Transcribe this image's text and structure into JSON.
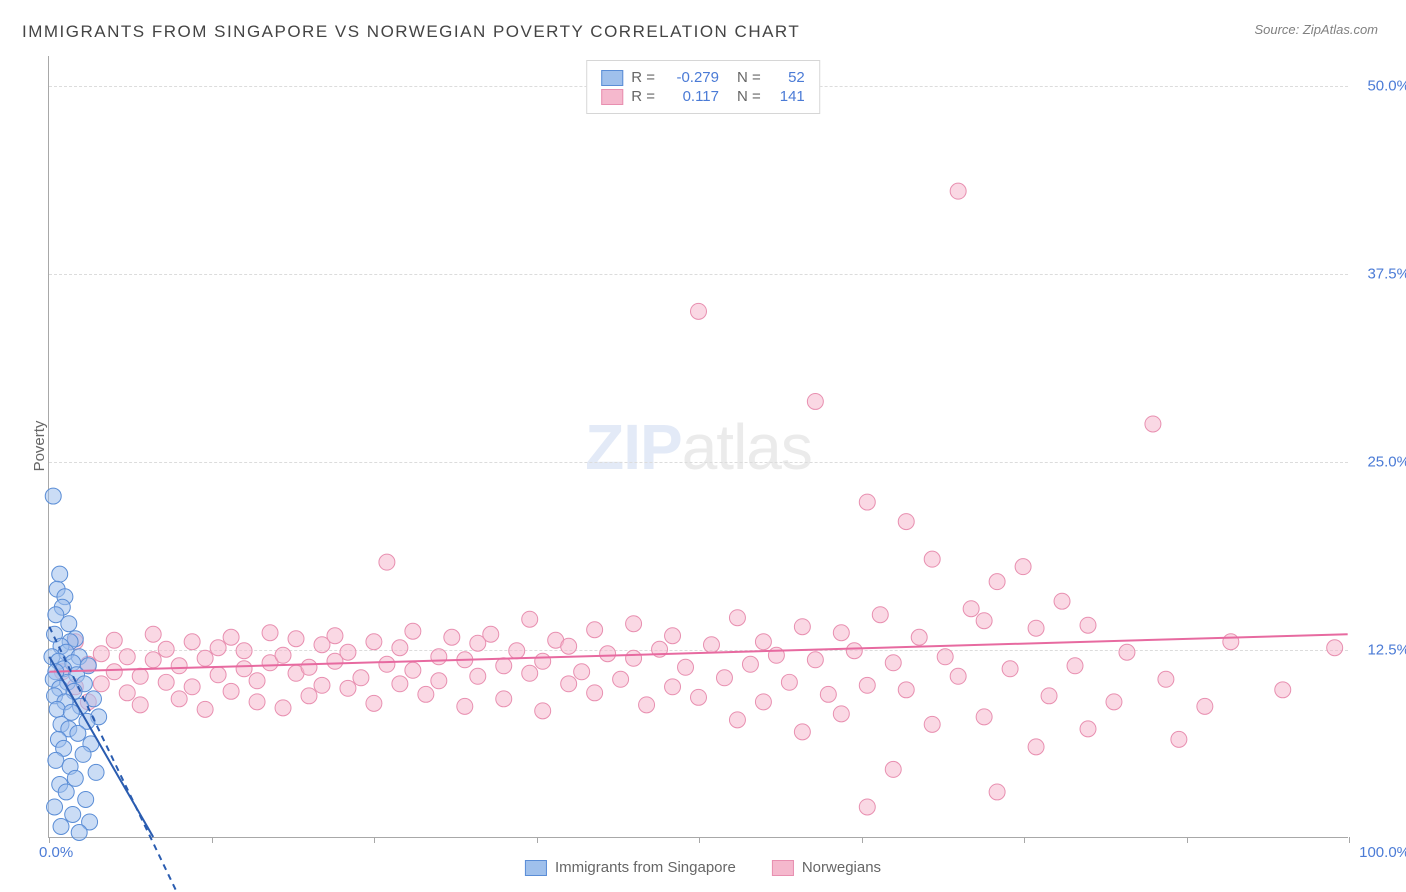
{
  "title": "IMMIGRANTS FROM SINGAPORE VS NORWEGIAN POVERTY CORRELATION CHART",
  "source": "Source: ZipAtlas.com",
  "watermark_zip": "ZIP",
  "watermark_atlas": "atlas",
  "ylabel": "Poverty",
  "colors": {
    "background": "#ffffff",
    "axis": "#a8a8a8",
    "grid": "#dcdcdc",
    "tick_label": "#4b7bd6",
    "text": "#666666",
    "series_a_fill": "#9fc0ec",
    "series_a_stroke": "#5a8dd6",
    "series_a_line": "#2a5cb0",
    "series_b_fill": "#f5b8cd",
    "series_b_stroke": "#e88fb0",
    "series_b_line": "#e76aa0"
  },
  "chart": {
    "type": "scatter",
    "x_range": [
      0,
      100
    ],
    "y_range": [
      0,
      52
    ],
    "y_ticks": [
      12.5,
      25.0,
      37.5,
      50.0
    ],
    "y_tick_labels": [
      "12.5%",
      "25.0%",
      "37.5%",
      "50.0%"
    ],
    "x_ticks": [
      0,
      12.5,
      25,
      37.5,
      50,
      62.5,
      75,
      87.5,
      100
    ],
    "x_left_label": "0.0%",
    "x_right_label": "100.0%",
    "marker_radius": 8,
    "marker_opacity": 0.55,
    "line_width": 2,
    "title_fontsize": 17,
    "label_fontsize": 15
  },
  "legend_top": {
    "rows": [
      {
        "swatch_fill": "#9fc0ec",
        "swatch_stroke": "#5a8dd6",
        "R_label": "R =",
        "R_value": "-0.279",
        "N_label": "N =",
        "N_value": "52"
      },
      {
        "swatch_fill": "#f5b8cd",
        "swatch_stroke": "#e88fb0",
        "R_label": "R =",
        "R_value": "0.117",
        "N_label": "N =",
        "N_value": "141"
      }
    ]
  },
  "legend_bottom": {
    "items": [
      {
        "swatch_fill": "#9fc0ec",
        "swatch_stroke": "#5a8dd6",
        "label": "Immigrants from Singapore"
      },
      {
        "swatch_fill": "#f5b8cd",
        "swatch_stroke": "#e88fb0",
        "label": "Norwegians"
      }
    ]
  },
  "series_a": {
    "name": "Immigrants from Singapore",
    "trend_line": {
      "x1": 0,
      "y1": 12.0,
      "x2": 8,
      "y2": 0
    },
    "trend_dash": {
      "x1": 0,
      "y1": 14.0,
      "x2": 10,
      "y2": -4
    },
    "points": [
      [
        0.3,
        22.7
      ],
      [
        0.8,
        17.5
      ],
      [
        0.6,
        16.5
      ],
      [
        1.2,
        16.0
      ],
      [
        1.0,
        15.3
      ],
      [
        0.5,
        14.8
      ],
      [
        1.5,
        14.2
      ],
      [
        0.4,
        13.5
      ],
      [
        2.0,
        13.2
      ],
      [
        1.6,
        13.0
      ],
      [
        0.9,
        12.7
      ],
      [
        1.3,
        12.3
      ],
      [
        0.2,
        12.0
      ],
      [
        2.3,
        12.0
      ],
      [
        0.7,
        11.7
      ],
      [
        1.8,
        11.6
      ],
      [
        3.0,
        11.4
      ],
      [
        1.1,
        11.2
      ],
      [
        0.5,
        11.0
      ],
      [
        2.1,
        10.8
      ],
      [
        0.3,
        10.5
      ],
      [
        1.4,
        10.3
      ],
      [
        2.7,
        10.2
      ],
      [
        0.8,
        9.9
      ],
      [
        1.9,
        9.7
      ],
      [
        0.4,
        9.4
      ],
      [
        3.4,
        9.2
      ],
      [
        1.2,
        9.0
      ],
      [
        2.4,
        8.7
      ],
      [
        0.6,
        8.5
      ],
      [
        1.7,
        8.3
      ],
      [
        3.8,
        8.0
      ],
      [
        2.9,
        7.7
      ],
      [
        0.9,
        7.5
      ],
      [
        1.5,
        7.2
      ],
      [
        2.2,
        6.9
      ],
      [
        0.7,
        6.5
      ],
      [
        3.2,
        6.2
      ],
      [
        1.1,
        5.9
      ],
      [
        2.6,
        5.5
      ],
      [
        0.5,
        5.1
      ],
      [
        1.6,
        4.7
      ],
      [
        3.6,
        4.3
      ],
      [
        2.0,
        3.9
      ],
      [
        0.8,
        3.5
      ],
      [
        1.3,
        3.0
      ],
      [
        2.8,
        2.5
      ],
      [
        0.4,
        2.0
      ],
      [
        1.8,
        1.5
      ],
      [
        3.1,
        1.0
      ],
      [
        0.9,
        0.7
      ],
      [
        2.3,
        0.3
      ]
    ]
  },
  "series_b": {
    "name": "Norwegians",
    "trend_line": {
      "x1": 0,
      "y1": 11.0,
      "x2": 100,
      "y2": 13.5
    },
    "points": [
      [
        1,
        11.0
      ],
      [
        2,
        10.0
      ],
      [
        2,
        13.0
      ],
      [
        3,
        11.5
      ],
      [
        3,
        9.0
      ],
      [
        4,
        12.2
      ],
      [
        4,
        10.2
      ],
      [
        5,
        11.0
      ],
      [
        5,
        13.1
      ],
      [
        6,
        9.6
      ],
      [
        6,
        12.0
      ],
      [
        7,
        10.7
      ],
      [
        7,
        8.8
      ],
      [
        8,
        11.8
      ],
      [
        8,
        13.5
      ],
      [
        9,
        10.3
      ],
      [
        9,
        12.5
      ],
      [
        10,
        9.2
      ],
      [
        10,
        11.4
      ],
      [
        11,
        13.0
      ],
      [
        11,
        10.0
      ],
      [
        12,
        11.9
      ],
      [
        12,
        8.5
      ],
      [
        13,
        12.6
      ],
      [
        13,
        10.8
      ],
      [
        14,
        9.7
      ],
      [
        14,
        13.3
      ],
      [
        15,
        11.2
      ],
      [
        15,
        12.4
      ],
      [
        16,
        10.4
      ],
      [
        16,
        9.0
      ],
      [
        17,
        13.6
      ],
      [
        17,
        11.6
      ],
      [
        18,
        12.1
      ],
      [
        18,
        8.6
      ],
      [
        19,
        10.9
      ],
      [
        19,
        13.2
      ],
      [
        20,
        11.3
      ],
      [
        20,
        9.4
      ],
      [
        21,
        12.8
      ],
      [
        21,
        10.1
      ],
      [
        22,
        11.7
      ],
      [
        22,
        13.4
      ],
      [
        23,
        9.9
      ],
      [
        23,
        12.3
      ],
      [
        24,
        10.6
      ],
      [
        25,
        13.0
      ],
      [
        25,
        8.9
      ],
      [
        26,
        11.5
      ],
      [
        26,
        18.3
      ],
      [
        27,
        12.6
      ],
      [
        27,
        10.2
      ],
      [
        28,
        13.7
      ],
      [
        28,
        11.1
      ],
      [
        29,
        9.5
      ],
      [
        30,
        12.0
      ],
      [
        30,
        10.4
      ],
      [
        31,
        13.3
      ],
      [
        32,
        11.8
      ],
      [
        32,
        8.7
      ],
      [
        33,
        12.9
      ],
      [
        33,
        10.7
      ],
      [
        34,
        13.5
      ],
      [
        35,
        11.4
      ],
      [
        35,
        9.2
      ],
      [
        36,
        12.4
      ],
      [
        37,
        10.9
      ],
      [
        37,
        14.5
      ],
      [
        38,
        11.7
      ],
      [
        38,
        8.4
      ],
      [
        39,
        13.1
      ],
      [
        40,
        10.2
      ],
      [
        40,
        12.7
      ],
      [
        41,
        11.0
      ],
      [
        42,
        9.6
      ],
      [
        42,
        13.8
      ],
      [
        43,
        12.2
      ],
      [
        44,
        10.5
      ],
      [
        45,
        11.9
      ],
      [
        45,
        14.2
      ],
      [
        46,
        8.8
      ],
      [
        47,
        12.5
      ],
      [
        48,
        10.0
      ],
      [
        48,
        13.4
      ],
      [
        49,
        11.3
      ],
      [
        50,
        9.3
      ],
      [
        50,
        35.0
      ],
      [
        51,
        12.8
      ],
      [
        52,
        10.6
      ],
      [
        53,
        14.6
      ],
      [
        53,
        7.8
      ],
      [
        54,
        11.5
      ],
      [
        55,
        13.0
      ],
      [
        55,
        9.0
      ],
      [
        56,
        12.1
      ],
      [
        57,
        10.3
      ],
      [
        58,
        14.0
      ],
      [
        58,
        7.0
      ],
      [
        59,
        29.0
      ],
      [
        59,
        11.8
      ],
      [
        60,
        9.5
      ],
      [
        61,
        13.6
      ],
      [
        61,
        8.2
      ],
      [
        62,
        12.4
      ],
      [
        63,
        10.1
      ],
      [
        63,
        22.3
      ],
      [
        64,
        14.8
      ],
      [
        65,
        4.5
      ],
      [
        65,
        11.6
      ],
      [
        66,
        9.8
      ],
      [
        66,
        21.0
      ],
      [
        67,
        13.3
      ],
      [
        68,
        7.5
      ],
      [
        68,
        18.5
      ],
      [
        69,
        12.0
      ],
      [
        70,
        43.0
      ],
      [
        70,
        10.7
      ],
      [
        71,
        15.2
      ],
      [
        72,
        8.0
      ],
      [
        72,
        14.4
      ],
      [
        73,
        17.0
      ],
      [
        73,
        3.0
      ],
      [
        74,
        11.2
      ],
      [
        75,
        18.0
      ],
      [
        76,
        6.0
      ],
      [
        76,
        13.9
      ],
      [
        77,
        9.4
      ],
      [
        78,
        15.7
      ],
      [
        79,
        11.4
      ],
      [
        80,
        7.2
      ],
      [
        80,
        14.1
      ],
      [
        82,
        9.0
      ],
      [
        83,
        12.3
      ],
      [
        85,
        27.5
      ],
      [
        86,
        10.5
      ],
      [
        87,
        6.5
      ],
      [
        89,
        8.7
      ],
      [
        91,
        13.0
      ],
      [
        95,
        9.8
      ],
      [
        99,
        12.6
      ],
      [
        63,
        2.0
      ]
    ]
  }
}
